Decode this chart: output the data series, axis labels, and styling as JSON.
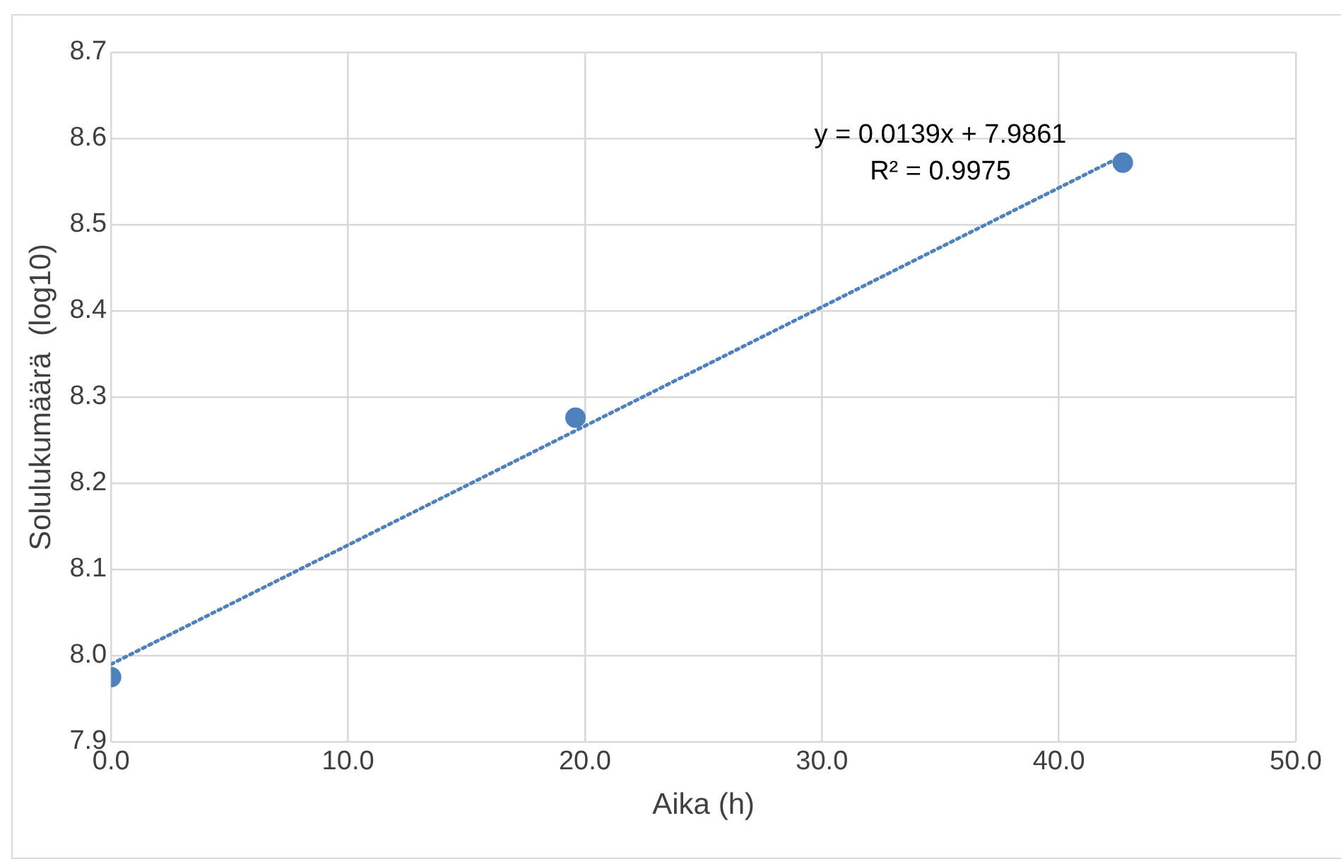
{
  "chart_data": {
    "type": "scatter",
    "xlabel": "Aika (h)",
    "ylabel": "Solulukumäärä  (log10)",
    "xlim": [
      0,
      50
    ],
    "xticks": [
      {
        "value": 0,
        "label": "0.0"
      },
      {
        "value": 10,
        "label": "10.0"
      },
      {
        "value": 20,
        "label": "20.0"
      },
      {
        "value": 30,
        "label": "30.0"
      },
      {
        "value": 40,
        "label": "40.0"
      },
      {
        "value": 50,
        "label": "50.0"
      }
    ],
    "ylim": [
      7.9,
      8.7
    ],
    "yticks": [
      {
        "value": 7.9,
        "label": "7.9"
      },
      {
        "value": 8.0,
        "label": "8.0"
      },
      {
        "value": 8.1,
        "label": "8.1"
      },
      {
        "value": 8.2,
        "label": "8.2"
      },
      {
        "value": 8.3,
        "label": "8.3"
      },
      {
        "value": 8.4,
        "label": "8.4"
      },
      {
        "value": 8.5,
        "label": "8.5"
      },
      {
        "value": 8.6,
        "label": "8.6"
      },
      {
        "value": 8.7,
        "label": "8.7"
      }
    ],
    "grid": true,
    "legend": false,
    "marker": "circle",
    "series": [
      {
        "color": "#4f81bd",
        "x": [
          0,
          19.6,
          42.7
        ],
        "values": [
          7.975,
          8.276,
          8.572
        ]
      },
      {
        "type": "line",
        "color": "#4f81bd",
        "line_style": "dotted",
        "marker": "none",
        "x": [
          0,
          42.7
        ],
        "values": [
          7.99,
          8.58
        ]
      }
    ],
    "annotations": [
      "y = 0.0139x + 7.9861",
      "R² = 0.9975"
    ]
  }
}
